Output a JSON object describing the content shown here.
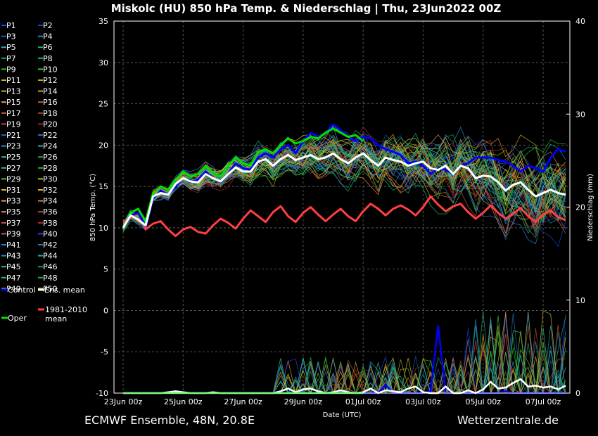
{
  "chart_data": {
    "type": "line",
    "title": "Miskolc  (HU)  850 hPa Temp. & Niederschlag | Thu, 23Jun2022 00Z",
    "xlabel": "Date (UTC)",
    "ylabel": "850 hPa Temp. (°C)",
    "ylabel_right": "Niederschlag (mm)",
    "x_tick_labels": [
      "23Jun 00z",
      "25Jun 00z",
      "27Jun 00z",
      "29Jun 00z",
      "01Jul 00z",
      "03Jul 00z",
      "05Jul 00z",
      "07Jul 00z"
    ],
    "x_tick_steps": [
      0,
      8,
      16,
      24,
      32,
      40,
      48,
      56
    ],
    "x_step_hours": 6,
    "ylim": [
      -10,
      35
    ],
    "y_ticks": [
      -10,
      -5,
      0,
      5,
      10,
      15,
      20,
      25,
      30,
      35
    ],
    "ylim_right": [
      0,
      40
    ],
    "y_ticks_right": [
      0,
      10,
      20,
      30,
      40
    ],
    "grid": true,
    "legend_position": "left",
    "series": [
      {
        "name": "Control",
        "color": "#0000ff",
        "width": 3,
        "values": [
          9.8,
          11.5,
          11.8,
          10.2,
          13.5,
          14.5,
          14.0,
          15.0,
          16.0,
          15.5,
          15.8,
          16.8,
          16.0,
          15.5,
          16.5,
          17.8,
          17.2,
          17.0,
          18.5,
          19.0,
          18.5,
          19.5,
          20.0,
          19.0,
          20.5,
          21.5,
          21.0,
          21.5,
          22.5,
          21.8,
          21.0,
          20.5,
          21.0,
          20.8,
          20.0,
          19.5,
          19.2,
          18.8,
          17.8,
          18.0,
          17.5,
          16.5,
          17.2,
          17.0,
          16.5,
          17.5,
          17.8,
          18.5,
          18.5,
          18.5,
          18.2,
          18.0,
          17.5,
          16.8,
          17.5,
          17.2,
          16.8,
          18.5,
          19.5,
          19.2
        ]
      },
      {
        "name": "Oper",
        "color": "#00e000",
        "width": 3,
        "values": [
          9.8,
          11.8,
          12.3,
          10.8,
          14.2,
          15.0,
          14.6,
          15.8,
          16.8,
          16.2,
          16.5,
          17.5,
          16.5,
          16.2,
          17.5,
          18.5,
          17.8,
          17.5,
          19.2,
          19.5,
          19.0,
          20.0,
          20.8,
          20.2,
          20.5,
          21.0,
          20.8,
          21.5,
          22.0,
          21.5,
          21.0,
          21.2,
          20.5
        ]
      },
      {
        "name": "Ens. mean",
        "color": "#ffffff",
        "width": 3,
        "values": [
          10.0,
          11.5,
          11.0,
          10.3,
          13.8,
          14.2,
          14.0,
          15.3,
          16.0,
          15.6,
          15.5,
          16.5,
          16.0,
          15.6,
          16.5,
          17.3,
          16.8,
          16.8,
          18.0,
          18.3,
          17.5,
          18.3,
          18.8,
          18.2,
          18.5,
          18.8,
          18.3,
          18.5,
          19.0,
          18.3,
          17.8,
          18.5,
          19.0,
          18.2,
          17.5,
          18.5,
          18.2,
          18.0,
          17.5,
          17.8,
          18.0,
          17.2,
          17.0,
          17.5,
          16.5,
          17.5,
          17.2,
          16.0,
          16.3,
          16.2,
          15.5,
          14.5,
          15.2,
          15.5,
          14.6,
          13.8,
          14.2,
          14.6,
          14.2,
          14.0
        ]
      },
      {
        "name": "1981-2010 mean",
        "color": "#ff4040",
        "width": 3,
        "values": [
          10.8,
          11.2,
          11.8,
          9.8,
          10.5,
          10.8,
          9.8,
          9.0,
          9.8,
          10.1,
          9.5,
          9.3,
          10.3,
          11.1,
          10.6,
          9.9,
          11.1,
          12.1,
          11.4,
          10.7,
          11.9,
          12.6,
          11.4,
          10.7,
          11.8,
          12.5,
          11.6,
          10.8,
          11.6,
          12.3,
          11.4,
          10.8,
          12.0,
          12.9,
          12.3,
          11.5,
          12.3,
          12.7,
          12.2,
          11.5,
          12.5,
          13.8,
          12.8,
          12.0,
          12.6,
          12.9,
          11.9,
          11.1,
          11.8,
          12.7,
          11.8,
          11.1,
          11.7,
          12.4,
          11.4,
          10.7,
          11.6,
          12.1,
          11.3,
          10.9
        ]
      }
    ],
    "precip_series": [
      {
        "name": "Control",
        "color": "#0000ff",
        "values": [
          0,
          0,
          0,
          0,
          0,
          0,
          0,
          0,
          0,
          0,
          0,
          0,
          0,
          0,
          0,
          0,
          0,
          0,
          0,
          0,
          0,
          0,
          0,
          0,
          0,
          0,
          0,
          0,
          0,
          0,
          0,
          0,
          0,
          0,
          0,
          0.9,
          0,
          0,
          0,
          0,
          0,
          0.2,
          7.3,
          0,
          0,
          0,
          0,
          0,
          0,
          0,
          0,
          0.2,
          0,
          0,
          0,
          0,
          0,
          0,
          0,
          0
        ]
      },
      {
        "name": "Ens. mean",
        "color": "#ffffff",
        "values": [
          0,
          0,
          0,
          0,
          0,
          0,
          0.1,
          0.2,
          0.1,
          0,
          0,
          0,
          0.1,
          0,
          0,
          0,
          0,
          0,
          0,
          0,
          0,
          0.2,
          0.5,
          0.1,
          0.4,
          0.5,
          0.2,
          0,
          0.1,
          0.3,
          0.1,
          0,
          0.1,
          0.5,
          0,
          0.3,
          0.2,
          0.1,
          0.5,
          0.7,
          0.1,
          0,
          0,
          0.7,
          0,
          0,
          0.3,
          0,
          0.4,
          1.2,
          0.5,
          0.6,
          1.1,
          1.5,
          0.7,
          0.8,
          0.6,
          0.7,
          0.4,
          0.8
        ]
      },
      {
        "name": "Oper",
        "color": "#00e000",
        "values": [
          0,
          0,
          0,
          0,
          0,
          0,
          0,
          0,
          0,
          0,
          0,
          0,
          0,
          0,
          0,
          0,
          0,
          0,
          0,
          0,
          0,
          0,
          0,
          0,
          0,
          0,
          0,
          0,
          0,
          0,
          0,
          0,
          0
        ]
      }
    ],
    "legend_entries": [
      {
        "name": "P1",
        "color": "#2040ff"
      },
      {
        "name": "P2",
        "color": "#1a3fd0"
      },
      {
        "name": "P3",
        "color": "#1560b0"
      },
      {
        "name": "P4",
        "color": "#1e88c8"
      },
      {
        "name": "P5",
        "color": "#1fb0c0"
      },
      {
        "name": "P6",
        "color": "#20b070"
      },
      {
        "name": "P7",
        "color": "#15a090"
      },
      {
        "name": "P8",
        "color": "#10c060"
      },
      {
        "name": "P9",
        "color": "#20c020"
      },
      {
        "name": "P10",
        "color": "#30d030"
      },
      {
        "name": "P11",
        "color": "#b0c020"
      },
      {
        "name": "P12",
        "color": "#c8a020"
      },
      {
        "name": "P13",
        "color": "#d0b030"
      },
      {
        "name": "P14",
        "color": "#d0a040"
      },
      {
        "name": "P15",
        "color": "#e0a060"
      },
      {
        "name": "P16",
        "color": "#c06020"
      },
      {
        "name": "P17",
        "color": "#d06030"
      },
      {
        "name": "P18",
        "color": "#b04020"
      },
      {
        "name": "P19",
        "color": "#c04040"
      },
      {
        "name": "P20",
        "color": "#a02020"
      },
      {
        "name": "P21",
        "color": "#3050d0"
      },
      {
        "name": "P22",
        "color": "#2070c0"
      },
      {
        "name": "P23",
        "color": "#2090d0"
      },
      {
        "name": "P24",
        "color": "#30a0b0"
      },
      {
        "name": "P25",
        "color": "#20c0a0"
      },
      {
        "name": "P26",
        "color": "#20a070"
      },
      {
        "name": "P27",
        "color": "#30c080"
      },
      {
        "name": "P28",
        "color": "#20b040"
      },
      {
        "name": "P29",
        "color": "#40c030"
      },
      {
        "name": "P30",
        "color": "#a0c020"
      },
      {
        "name": "P31",
        "color": "#d0c020"
      },
      {
        "name": "P32",
        "color": "#e0b030"
      },
      {
        "name": "P33",
        "color": "#e0a020"
      },
      {
        "name": "P34",
        "color": "#d08030"
      },
      {
        "name": "P35",
        "color": "#e09050"
      },
      {
        "name": "P36",
        "color": "#c05020"
      },
      {
        "name": "P37",
        "color": "#d05050"
      },
      {
        "name": "P38",
        "color": "#b03030"
      },
      {
        "name": "P39",
        "color": "#c06060"
      },
      {
        "name": "P40",
        "color": "#3040e0"
      },
      {
        "name": "P41",
        "color": "#2080d0"
      },
      {
        "name": "P42",
        "color": "#3070c0"
      },
      {
        "name": "P43",
        "color": "#2090c0"
      },
      {
        "name": "P44",
        "color": "#20b0a0"
      },
      {
        "name": "P45",
        "color": "#30c0a0"
      },
      {
        "name": "P46",
        "color": "#10a050"
      },
      {
        "name": "P47",
        "color": "#30c070"
      },
      {
        "name": "P48",
        "color": "#20b050"
      },
      {
        "name": "P49",
        "color": "#90c020"
      },
      {
        "name": "P50",
        "color": "#d0c030"
      }
    ]
  },
  "footer": {
    "left": "ECMWF Ensemble, 48N, 20.8E",
    "right": "Wetterzentrale.de"
  }
}
